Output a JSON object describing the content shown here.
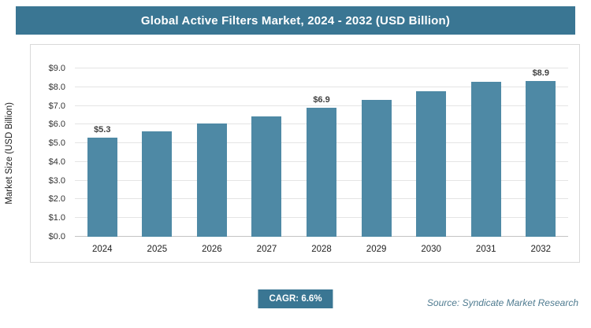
{
  "header": {
    "title": "Global Active Filters Market, 2024 - 2032 (USD Billion)"
  },
  "chart_data": {
    "type": "bar",
    "title": "Global Active Filters Market, 2024 - 2032 (USD Billion)",
    "categories": [
      "2024",
      "2025",
      "2026",
      "2027",
      "2028",
      "2029",
      "2030",
      "2031",
      "2032"
    ],
    "values": [
      5.3,
      5.65,
      6.05,
      6.45,
      6.9,
      7.3,
      7.8,
      8.3,
      8.9
    ],
    "value_labels": [
      "$5.3",
      null,
      null,
      null,
      "$6.9",
      null,
      null,
      null,
      "$8.9"
    ],
    "xlabel": "",
    "ylabel": "Market Size (USD Billion)",
    "ylim": [
      0,
      9
    ],
    "ytick_labels": [
      "$0.0",
      "$1.0",
      "$2.0",
      "$3.0",
      "$4.0",
      "$5.0",
      "$6.0",
      "$7.0",
      "$8.0",
      "$9.0"
    ],
    "grid": "horizontal",
    "legend": "none",
    "bar_color": "#4e89a5"
  },
  "footer": {
    "cagr_label": "CAGR: 6.6%",
    "source": "Source: Syndicate Market Research"
  }
}
